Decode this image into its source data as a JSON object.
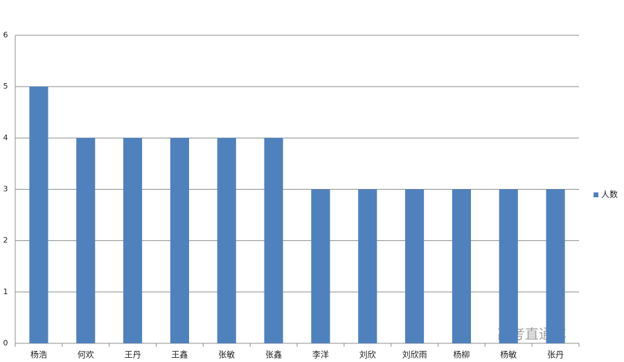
{
  "chart_data": {
    "type": "bar",
    "categories": [
      "杨浩",
      "何欢",
      "王丹",
      "王鑫",
      "张敏",
      "张鑫",
      "李洋",
      "刘欣",
      "刘欣雨",
      "杨柳",
      "杨敏",
      "张丹"
    ],
    "series": [
      {
        "name": "人数",
        "color": "#4f81bd",
        "values": [
          5,
          4,
          4,
          4,
          4,
          4,
          3,
          3,
          3,
          3,
          3,
          3
        ]
      }
    ],
    "ylim": [
      0,
      6
    ],
    "yticks": [
      0,
      1,
      2,
      3,
      4,
      5,
      6
    ],
    "grid": true,
    "legend": "right",
    "annotation": "高考直通车"
  }
}
